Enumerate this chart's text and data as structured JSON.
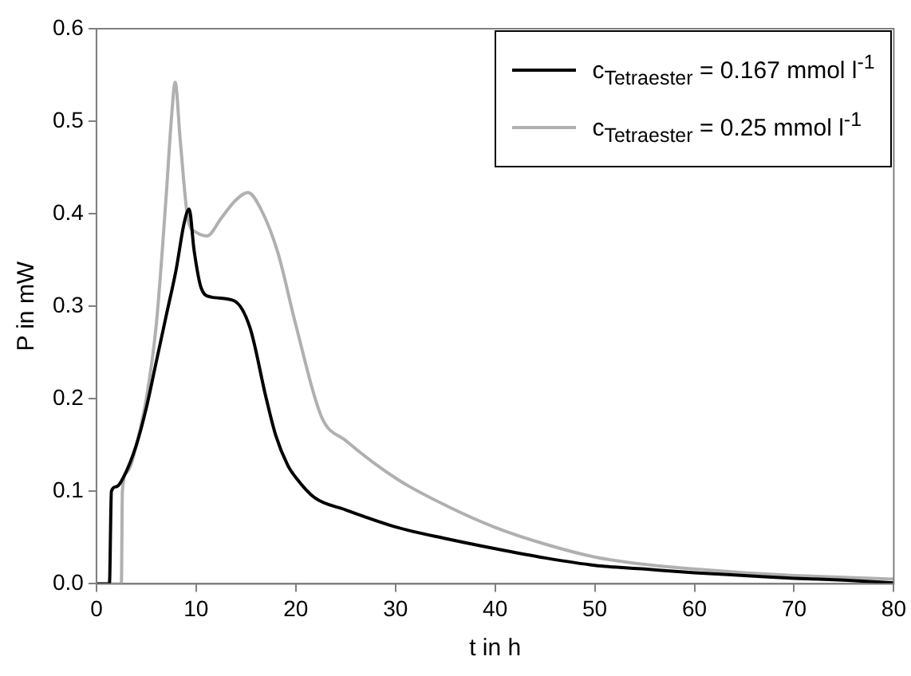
{
  "chart_data": {
    "type": "line",
    "xlabel": "t in h",
    "ylabel": "P in mW",
    "xlim": [
      0,
      80
    ],
    "xticks": [
      0,
      10,
      20,
      30,
      40,
      50,
      60,
      70,
      80
    ],
    "ylim": [
      0,
      0.6
    ],
    "yticks": [
      {
        "value": 0,
        "label": "0.0"
      },
      {
        "value": 0.1,
        "label": "0.1"
      },
      {
        "value": 0.2,
        "label": "0.2"
      },
      {
        "value": 0.3,
        "label": "0.3"
      },
      {
        "value": 0.4,
        "label": "0.4"
      },
      {
        "value": 0.5,
        "label": "0.5"
      },
      {
        "value": 0.6,
        "label": "0.6"
      }
    ],
    "grid": false,
    "legend": "top right",
    "marker": "none",
    "line_style": "solid",
    "series": [
      {
        "name": "c$_{Tetraester}$ = 0.167 mmol l$^{-1}$",
        "color": "#000000",
        "x": [
          0,
          1.3,
          1.5,
          2,
          2.7,
          4,
          5,
          6,
          7,
          8,
          8.8,
          9.3,
          9.8,
          10.5,
          11.5,
          13.8,
          15.4,
          17,
          18,
          19.2,
          20,
          21.9,
          25,
          30.2,
          35,
          40,
          45,
          50,
          55,
          60,
          65,
          70,
          75,
          80
        ],
        "values": [
          0,
          0,
          0.1,
          0.105,
          0.115,
          0.15,
          0.19,
          0.24,
          0.29,
          0.34,
          0.39,
          0.405,
          0.36,
          0.32,
          0.31,
          0.306,
          0.277,
          0.202,
          0.16,
          0.128,
          0.115,
          0.093,
          0.08,
          0.061,
          0.049,
          0.038,
          0.028,
          0.02,
          0.016,
          0.012,
          0.009,
          0.006,
          0.004,
          0.001
        ]
      },
      {
        "name": "c$_{Tetraester}$ = 0.25 mmol l$^{-1}$",
        "color": "#b0b0b0",
        "x": [
          0,
          2.5,
          2.6,
          3,
          3.5,
          4,
          5,
          6,
          7,
          7.5,
          7.9,
          8.4,
          9.2,
          10,
          11.1,
          12.5,
          14,
          15.2,
          16.5,
          18.2,
          20,
          22.6,
          25,
          30.2,
          35,
          40,
          45,
          50,
          55,
          60,
          65,
          70,
          75,
          80
        ],
        "values": [
          0,
          0,
          0.1,
          0.12,
          0.13,
          0.15,
          0.2,
          0.28,
          0.42,
          0.5,
          0.542,
          0.48,
          0.393,
          0.38,
          0.376,
          0.395,
          0.415,
          0.423,
          0.405,
          0.358,
          0.28,
          0.18,
          0.155,
          0.113,
          0.085,
          0.061,
          0.043,
          0.029,
          0.021,
          0.016,
          0.012,
          0.009,
          0.007,
          0.005
        ]
      }
    ]
  }
}
